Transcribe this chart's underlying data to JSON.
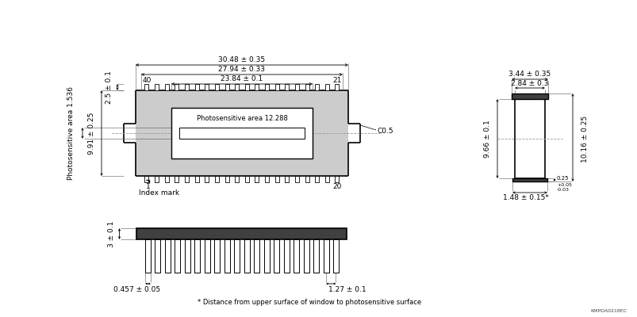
{
  "bg_color": "#ffffff",
  "line_color": "#000000",
  "gray_fill": "#cccccc",
  "dark_fill": "#404040",
  "note_text": "* Distance from upper surface of window to photosensitive surface",
  "ref_text": "KMPDA0218EC",
  "font_size": 6.5,
  "annotations": {
    "dim_30_48": "30.48 ± 0.35",
    "dim_27_94": "27.94 ± 0.33",
    "dim_23_84": "23.84 ± 0.1",
    "photosensitive_area": "Photosensitive area 12.288",
    "photosensitive_area_v": "Photosensitive area 1.536",
    "dim_2_5": "2.5 ± 0.1",
    "dim_9_91": "9.91 ± 0.25",
    "pin40": "40",
    "pin21": "21",
    "pin1": "1",
    "pin20": "20",
    "C05": "C0.5",
    "index_mark": "Index mark",
    "dim_3_44": "3.44 ± 0.35",
    "dim_2_84": "2.84 ± 0.3",
    "dim_9_66": "9.66 ± 0.1",
    "dim_10_16": "10.16 ± 0.25",
    "dim_1_48": "1.48 ± 0.15*",
    "dim_0_25": "0.25",
    "dim_0_25_tol": "+0.05\n-0.03",
    "dim_3": "3 ± 0.1",
    "dim_0_457": "0.457 ± 0.05",
    "dim_1_27": "1.27 ± 0.1"
  }
}
